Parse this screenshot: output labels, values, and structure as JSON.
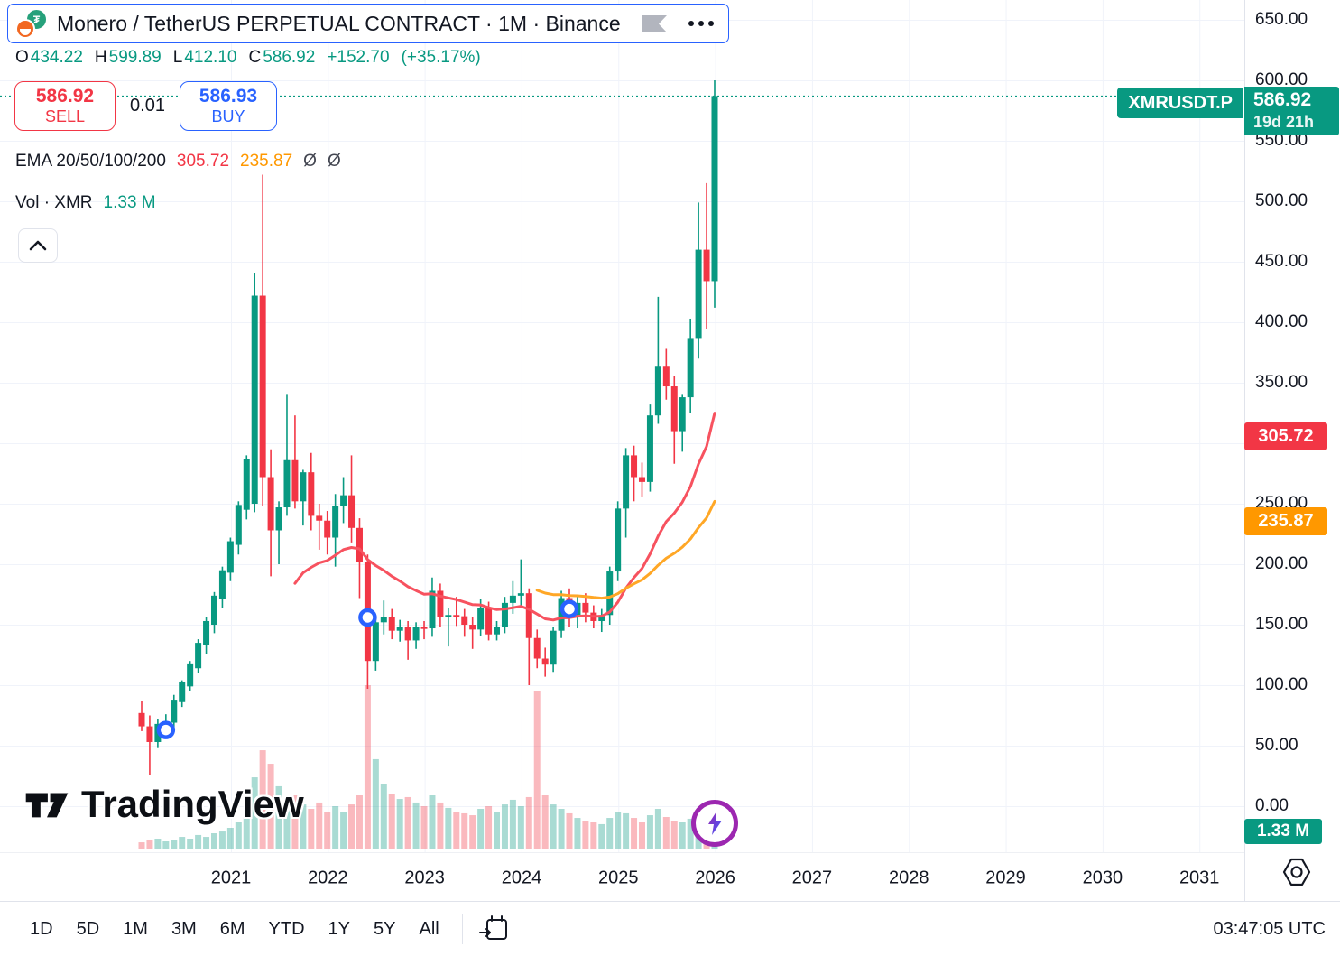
{
  "header": {
    "title": "Monero / TetherUS PERPETUAL CONTRACT · 1M · Binance"
  },
  "ohlc": {
    "o_label": "O",
    "o": "434.22",
    "h_label": "H",
    "h": "599.89",
    "l_label": "L",
    "l": "412.10",
    "c_label": "C",
    "c": "586.92",
    "change": "+152.70",
    "change_pct": "(+35.17%)"
  },
  "order_panel": {
    "sell_price": "586.92",
    "sell_label": "SELL",
    "spread": "0.01",
    "buy_price": "586.93",
    "buy_label": "BUY"
  },
  "indicators": {
    "ema_label": "EMA 20/50/100/200",
    "ema20_value": "305.72",
    "ema50_value": "235.87",
    "empty1": "Ø",
    "empty2": "Ø"
  },
  "volume_row": {
    "label": "Vol · XMR",
    "value": "1.33 M"
  },
  "price_scale": {
    "symbol_badge": {
      "label": "XMRUSDT.P",
      "price": "586.92",
      "countdown": "19d 21h"
    },
    "ema20_badge": "305.72",
    "ema50_badge": "235.87",
    "volume_badge": "1.33 M"
  },
  "toolbar": {
    "ranges": [
      "1D",
      "5D",
      "1M",
      "3M",
      "6M",
      "YTD",
      "1Y",
      "5Y",
      "All"
    ],
    "clock": "03:47:05 UTC"
  },
  "watermark": {
    "text": "TradingView"
  },
  "colors": {
    "up": "#089981",
    "down": "#f23645",
    "accent_blue": "#2962ff",
    "ema20": "#f7525f",
    "ema50": "#ffa726",
    "badge_orange": "#ff9800"
  },
  "chart_data": {
    "type": "candlestick",
    "symbol": "XMRUSDT.P",
    "interval": "1M",
    "start_month": "2020-01",
    "ylim": [
      0,
      667
    ],
    "price_ticks": [
      650,
      600,
      550,
      500,
      450,
      400,
      350,
      250,
      200,
      150,
      100,
      50,
      0
    ],
    "years": [
      2021,
      2022,
      2023,
      2024,
      2025,
      2026,
      2027,
      2028,
      2029,
      2030,
      2031
    ],
    "current_price": 586.92,
    "up_color": "#089981",
    "down_color": "#f23645",
    "vol_up_color": "rgba(8,153,129,0.35)",
    "vol_down_color": "rgba(242,54,69,0.35)",
    "ema20": {
      "period": 20,
      "color": "#f7525f",
      "last_value": 305.72
    },
    "ema50": {
      "period": 50,
      "color": "#ffa726",
      "last_value": 235.87
    },
    "ohlc": [
      [
        77,
        87,
        62,
        66
      ],
      [
        66,
        75,
        26,
        53
      ],
      [
        53,
        72,
        48,
        68
      ],
      [
        68,
        76,
        60,
        69
      ],
      [
        69,
        92,
        65,
        88
      ],
      [
        86,
        104,
        82,
        103
      ],
      [
        99,
        120,
        95,
        118
      ],
      [
        114,
        138,
        110,
        135
      ],
      [
        133,
        156,
        126,
        153
      ],
      [
        150,
        177,
        143,
        174
      ],
      [
        171,
        198,
        164,
        195
      ],
      [
        193,
        222,
        186,
        219
      ],
      [
        216,
        252,
        208,
        249
      ],
      [
        245,
        290,
        237,
        287
      ],
      [
        250,
        441,
        243,
        422
      ],
      [
        422,
        522,
        248,
        272
      ],
      [
        272,
        295,
        190,
        228
      ],
      [
        228,
        252,
        200,
        247
      ],
      [
        247,
        340,
        240,
        286
      ],
      [
        286,
        323,
        246,
        252
      ],
      [
        252,
        278,
        232,
        276
      ],
      [
        276,
        292,
        228,
        240
      ],
      [
        240,
        250,
        212,
        236
      ],
      [
        236,
        244,
        208,
        222
      ],
      [
        222,
        258,
        198,
        248
      ],
      [
        248,
        272,
        234,
        257
      ],
      [
        257,
        290,
        218,
        230
      ],
      [
        230,
        238,
        172,
        202
      ],
      [
        202,
        208,
        97,
        120
      ],
      [
        120,
        157,
        112,
        152
      ],
      [
        152,
        170,
        142,
        156
      ],
      [
        156,
        163,
        138,
        145
      ],
      [
        145,
        154,
        136,
        148
      ],
      [
        148,
        153,
        121,
        137
      ],
      [
        137,
        152,
        130,
        148
      ],
      [
        148,
        153,
        138,
        147
      ],
      [
        147,
        189,
        140,
        178
      ],
      [
        178,
        184,
        148,
        156
      ],
      [
        156,
        164,
        132,
        158
      ],
      [
        158,
        173,
        149,
        157
      ],
      [
        157,
        163,
        140,
        150
      ],
      [
        150,
        156,
        130,
        146
      ],
      [
        146,
        171,
        141,
        164
      ],
      [
        164,
        169,
        137,
        142
      ],
      [
        142,
        153,
        137,
        148
      ],
      [
        148,
        173,
        143,
        168
      ],
      [
        168,
        186,
        159,
        174
      ],
      [
        174,
        204,
        164,
        176
      ],
      [
        176,
        180,
        100,
        139
      ],
      [
        139,
        146,
        114,
        122
      ],
      [
        122,
        131,
        107,
        117
      ],
      [
        117,
        148,
        111,
        145
      ],
      [
        145,
        178,
        139,
        172
      ],
      [
        172,
        180,
        148,
        158
      ],
      [
        158,
        173,
        147,
        168
      ],
      [
        168,
        176,
        152,
        160
      ],
      [
        160,
        166,
        147,
        153
      ],
      [
        153,
        163,
        144,
        158
      ],
      [
        158,
        198,
        150,
        194
      ],
      [
        194,
        252,
        186,
        246
      ],
      [
        246,
        296,
        222,
        290
      ],
      [
        290,
        298,
        252,
        272
      ],
      [
        272,
        284,
        256,
        268
      ],
      [
        268,
        332,
        260,
        323
      ],
      [
        323,
        421,
        316,
        364
      ],
      [
        364,
        378,
        336,
        347
      ],
      [
        347,
        356,
        283,
        310
      ],
      [
        310,
        340,
        293,
        338
      ],
      [
        338,
        403,
        325,
        387
      ],
      [
        387,
        499,
        370,
        460
      ],
      [
        460,
        515,
        394,
        434
      ],
      [
        434,
        600,
        412,
        587
      ]
    ],
    "volume_m": [
      0.53,
      0.67,
      0.8,
      0.6,
      0.73,
      0.93,
      0.8,
      1.07,
      0.93,
      1.2,
      1.33,
      1.6,
      2.0,
      2.33,
      5.33,
      7.33,
      6.33,
      4.67,
      3.67,
      4.0,
      3.33,
      3.0,
      3.47,
      2.8,
      3.2,
      2.8,
      3.33,
      4.0,
      12.13,
      6.67,
      4.8,
      4.13,
      3.73,
      3.87,
      3.47,
      3.2,
      4.0,
      3.47,
      3.07,
      2.8,
      2.67,
      2.53,
      3.0,
      3.2,
      2.8,
      3.33,
      3.67,
      3.2,
      3.87,
      11.67,
      4.0,
      3.33,
      3.0,
      2.67,
      2.33,
      2.13,
      2.0,
      1.87,
      2.33,
      2.8,
      2.67,
      2.33,
      2.0,
      2.53,
      3.0,
      2.4,
      2.13,
      2.0,
      2.27,
      2.67,
      2.53,
      1.33
    ],
    "markers": [
      {
        "index": 3,
        "price": 63
      },
      {
        "index": 28,
        "price": 156
      },
      {
        "index": 53,
        "price": 163
      }
    ]
  }
}
